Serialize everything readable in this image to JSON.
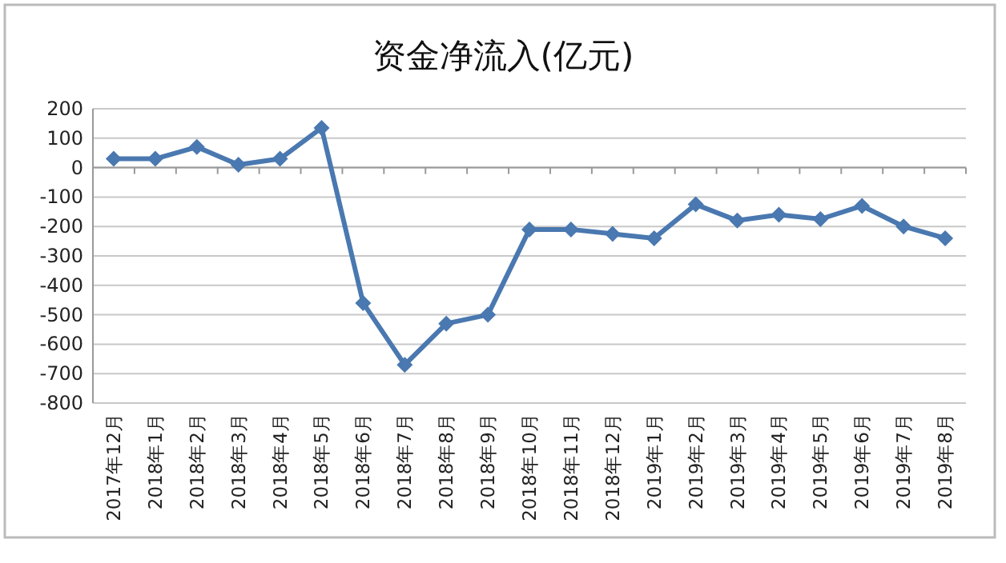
{
  "chart_data": {
    "type": "line",
    "title": "资金净流入(亿元)",
    "categories": [
      "2017年12月",
      "2018年1月",
      "2018年2月",
      "2018年3月",
      "2018年4月",
      "2018年5月",
      "2018年6月",
      "2018年7月",
      "2018年8月",
      "2018年9月",
      "2018年10月",
      "2018年11月",
      "2018年12月",
      "2019年1月",
      "2019年2月",
      "2019年3月",
      "2019年4月",
      "2019年5月",
      "2019年6月",
      "2019年7月",
      "2019年8月"
    ],
    "series": [
      {
        "color": "#4a78b0",
        "values": [
          30,
          30,
          70,
          10,
          30,
          135,
          -460,
          -670,
          -530,
          -500,
          -210,
          -210,
          -225,
          -240,
          -125,
          -180,
          -160,
          -175,
          -130,
          -200,
          -240
        ]
      }
    ],
    "ylim": [
      -800,
      200
    ],
    "yticks": [
      -800,
      -700,
      -600,
      -500,
      -400,
      -300,
      -200,
      -100,
      0,
      100,
      200
    ],
    "grid": "y",
    "marker": "diamond",
    "line_style": "solid"
  }
}
